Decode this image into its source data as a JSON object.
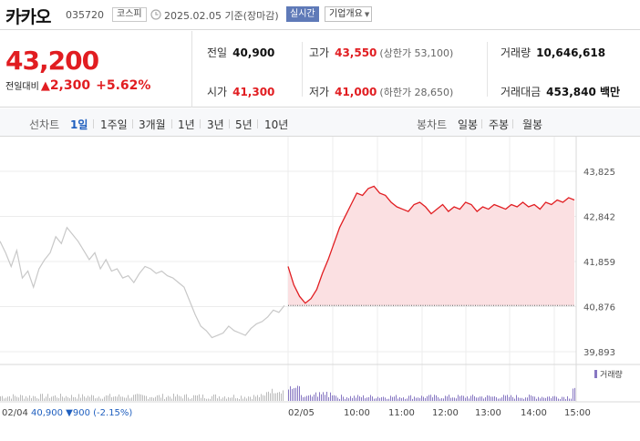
{
  "header": {
    "name": "카카오",
    "code": "035720",
    "market": "코스피",
    "base_date": "2025.02.05 기준(장마감)",
    "realtime_label": "실시간",
    "company_label": "기업개요"
  },
  "quote": {
    "price": "43,200",
    "change_label": "전일대비",
    "change": "2,300",
    "change_rate": "+5.62%",
    "prev_close_label": "전일",
    "prev_close": "40,900",
    "high_label": "고가",
    "high": "43,550",
    "upper_limit": "(상한가 53,100)",
    "volume_label": "거래량",
    "volume": "10,646,618",
    "open_label": "시가",
    "open": "41,300",
    "low_label": "저가",
    "low": "41,000",
    "lower_limit": "(하한가 28,650)",
    "amount_label": "거래대금",
    "amount": "453,840 백만"
  },
  "tabs": {
    "line_label": "선차트",
    "periods": [
      "1일",
      "1주일",
      "3개월",
      "1년",
      "3년",
      "5년",
      "10년"
    ],
    "active_index": 0,
    "candle_label": "봉차트",
    "candles": [
      "일봉",
      "주봉",
      "월봉"
    ]
  },
  "colors": {
    "up": "#e11d21",
    "down": "#1f5fbf",
    "fill": "#fbe0e2",
    "prev": "#c8c8c8",
    "volume_prev": "#bbbbbb",
    "volume_today": "#8777c2"
  },
  "chart_data": {
    "type": "line",
    "y_ticks": [
      "43,825",
      "42,842",
      "41,859",
      "40,876",
      "39,893"
    ],
    "y_values": [
      43825,
      42842,
      41859,
      40876,
      39893
    ],
    "ylim": [
      39893,
      43825
    ],
    "baseline": 40900,
    "x_tick_labels": [
      "02/04",
      "02/05",
      "10:00",
      "11:00",
      "12:00",
      "13:00",
      "14:00",
      "15:00"
    ],
    "prev_info": {
      "date": "02/04",
      "close": "40,900",
      "change": "▼900",
      "rate": "(-2.15%)"
    },
    "volume_legend": "거래량",
    "prev_day_series": [
      42300,
      42050,
      41750,
      42100,
      41500,
      41650,
      41300,
      41700,
      41900,
      42050,
      42400,
      42250,
      42600,
      42450,
      42300,
      42100,
      41900,
      42050,
      41700,
      41900,
      41650,
      41700,
      41500,
      41550,
      41400,
      41600,
      41750,
      41700,
      41600,
      41650,
      41550,
      41500,
      41400,
      41300,
      41000,
      40700,
      40450,
      40350,
      40200,
      40250,
      40300,
      40450,
      40350,
      40300,
      40250,
      40400,
      40500,
      40550,
      40650,
      40800,
      40750,
      40900
    ],
    "today_series": [
      41750,
      41350,
      41100,
      40950,
      41050,
      41250,
      41600,
      41900,
      42250,
      42600,
      42850,
      43100,
      43350,
      43300,
      43450,
      43500,
      43350,
      43300,
      43150,
      43050,
      43000,
      42950,
      43100,
      43150,
      43050,
      42900,
      43000,
      43100,
      42950,
      43050,
      43000,
      43150,
      43100,
      42950,
      43050,
      43000,
      43100,
      43050,
      43000,
      43100,
      43050,
      43150,
      43050,
      43100,
      43000,
      43150,
      43100,
      43200,
      43150,
      43250,
      43200
    ]
  }
}
